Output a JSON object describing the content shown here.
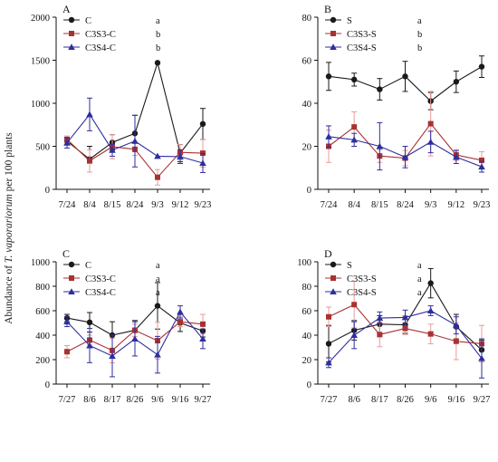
{
  "figure": {
    "y_axis_title_prefix": "Abundance of ",
    "y_axis_title_species": "T. vaporariorum",
    "y_axis_title_suffix": " per 100 plants"
  },
  "colors": {
    "black": "#1a1a1a",
    "red": "#a83232",
    "blue": "#2e2e9e",
    "errRed": "#e89b9b"
  },
  "chart_data": [
    {
      "panel": "A",
      "type": "line",
      "categories": [
        "7/24",
        "8/4",
        "8/15",
        "8/24",
        "9/3",
        "9/12",
        "9/23"
      ],
      "ylim": [
        0,
        2000
      ],
      "yticks": [
        0,
        500,
        1000,
        1500,
        2000
      ],
      "series": [
        {
          "name": "C",
          "letter": "a",
          "marker": "circle",
          "color": "black",
          "values": [
            560,
            350,
            545,
            650,
            1470,
            420,
            760
          ],
          "err": [
            40,
            150,
            90,
            210,
            0,
            100,
            180
          ]
        },
        {
          "name": "C3S3-C",
          "letter": "b",
          "marker": "square",
          "color": "red",
          "values": [
            580,
            330,
            495,
            465,
            140,
            430,
            420
          ],
          "err": [
            40,
            130,
            140,
            70,
            90,
            90,
            160
          ]
        },
        {
          "name": "C3S4-C",
          "letter": "b",
          "marker": "triangle",
          "color": "blue",
          "values": [
            540,
            870,
            455,
            560,
            385,
            380,
            305
          ],
          "err": [
            60,
            190,
            70,
            300,
            0,
            80,
            110
          ]
        }
      ]
    },
    {
      "panel": "B",
      "type": "line",
      "categories": [
        "7/24",
        "8/4",
        "8/15",
        "8/24",
        "9/3",
        "9/12",
        "9/23"
      ],
      "ylim": [
        0,
        80
      ],
      "yticks": [
        0,
        20,
        40,
        60,
        80
      ],
      "series": [
        {
          "name": "S",
          "letter": "a",
          "marker": "circle",
          "color": "black",
          "values": [
            52.5,
            51,
            46.5,
            52.5,
            41,
            50,
            57
          ],
          "err": [
            6.5,
            3,
            5,
            7,
            4,
            5,
            5
          ]
        },
        {
          "name": "C3S3-S",
          "letter": "b",
          "marker": "square",
          "color": "red",
          "values": [
            20,
            29,
            15.5,
            14.5,
            30.5,
            16,
            13.5
          ],
          "err": [
            7.5,
            7,
            3,
            3.5,
            15,
            2.5,
            4
          ]
        },
        {
          "name": "C3S4-S",
          "letter": "b",
          "marker": "triangle",
          "color": "blue",
          "values": [
            24.5,
            23,
            20,
            15,
            22,
            15,
            10.5
          ],
          "err": [
            5,
            3,
            11,
            5,
            5,
            3,
            2.5
          ]
        }
      ]
    },
    {
      "panel": "C",
      "type": "line",
      "categories": [
        "7/27",
        "8/6",
        "8/17",
        "8/26",
        "9/6",
        "9/16",
        "9/27"
      ],
      "ylim": [
        0,
        1000
      ],
      "yticks": [
        0,
        200,
        400,
        600,
        800,
        1000
      ],
      "series": [
        {
          "name": "C",
          "letter": "a",
          "marker": "circle",
          "color": "black",
          "values": [
            540,
            505,
            400,
            440,
            640,
            500,
            435
          ],
          "err": [
            30,
            80,
            110,
            80,
            190,
            70,
            50
          ]
        },
        {
          "name": "C3S3-C",
          "letter": "a",
          "marker": "square",
          "color": "red",
          "values": [
            265,
            360,
            275,
            440,
            355,
            510,
            490
          ],
          "err": [
            50,
            40,
            100,
            50,
            150,
            40,
            80
          ]
        },
        {
          "name": "C3S4-C",
          "letter": "a",
          "marker": "triangle",
          "color": "blue",
          "values": [
            510,
            315,
            230,
            370,
            240,
            590,
            370
          ],
          "err": [
            40,
            140,
            170,
            140,
            150,
            50,
            80
          ]
        }
      ]
    },
    {
      "panel": "D",
      "type": "line",
      "categories": [
        "7/27",
        "8/6",
        "8/17",
        "8/26",
        "9/6",
        "9/16",
        "9/27"
      ],
      "ylim": [
        0,
        100
      ],
      "yticks": [
        0,
        20,
        40,
        60,
        80,
        100
      ],
      "series": [
        {
          "name": "S",
          "letter": "a",
          "marker": "circle",
          "color": "black",
          "values": [
            33,
            44,
            49,
            48.5,
            82.5,
            47,
            28
          ],
          "err": [
            15,
            8,
            7,
            7,
            12,
            10,
            8
          ]
        },
        {
          "name": "C3S3-S",
          "letter": "a",
          "marker": "square",
          "color": "red",
          "values": [
            55,
            65,
            40.5,
            45.5,
            41,
            35,
            33
          ],
          "err": [
            8,
            19,
            10,
            5,
            8,
            15,
            15
          ]
        },
        {
          "name": "C3S4-S",
          "letter": "a",
          "marker": "triangle",
          "color": "blue",
          "values": [
            17.5,
            40,
            54,
            54.5,
            60,
            48,
            21
          ],
          "err": [
            4,
            11,
            5,
            6,
            4,
            7,
            16
          ]
        }
      ]
    }
  ]
}
